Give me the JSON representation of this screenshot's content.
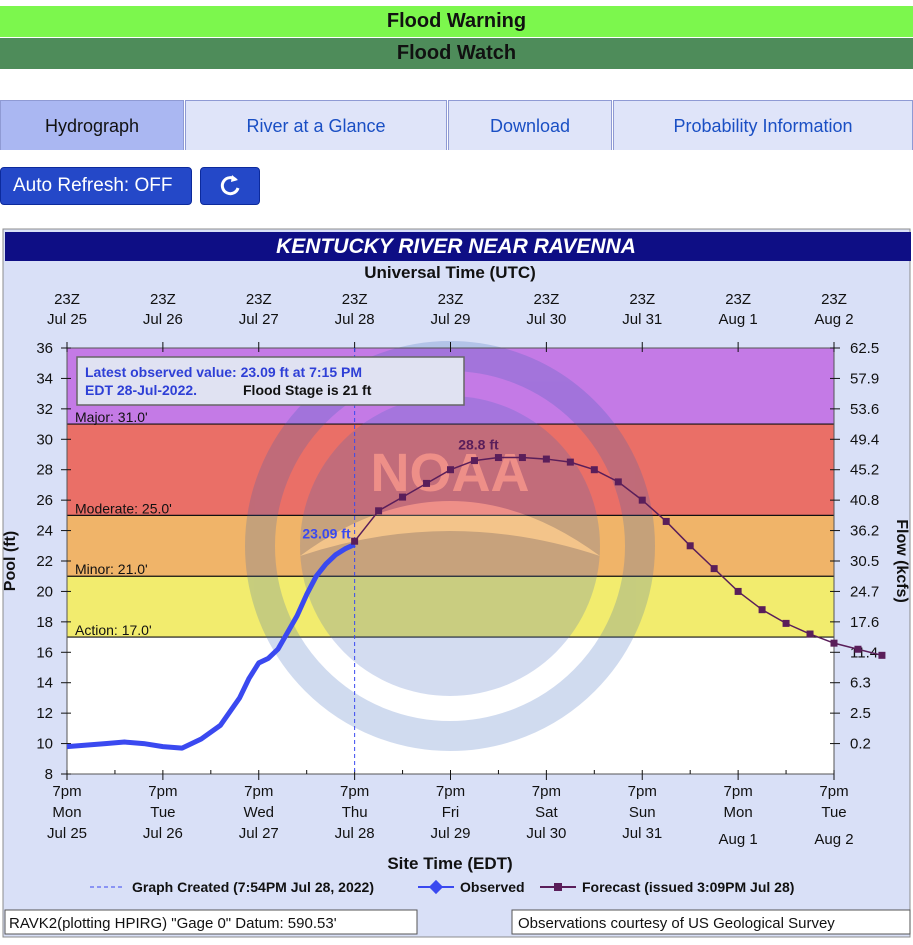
{
  "banners": {
    "warning": "Flood Warning",
    "watch": "Flood Watch"
  },
  "tabs": [
    {
      "label": "Hydrograph",
      "active": true
    },
    {
      "label": "River at a Glance",
      "active": false
    },
    {
      "label": "Download",
      "active": false
    },
    {
      "label": "Probability Information",
      "active": false
    }
  ],
  "controls": {
    "auto_refresh_label": "Auto Refresh: OFF",
    "refresh_icon": "refresh-icon"
  },
  "colors": {
    "warning": "#7cf74d",
    "watch": "#4e8c5a",
    "title_bar": "#0e0e85",
    "major": "#c47ae6",
    "moderate": "#ea6f67",
    "minor": "#f0b469",
    "action": "#f2ec6e",
    "normal": "#ffffff",
    "observed": "#3a49f0",
    "forecast": "#5a1e5a"
  },
  "chart_data": {
    "type": "line",
    "title": "KENTUCKY RIVER NEAR RAVENNA",
    "top_axis_title": "Universal Time (UTC)",
    "top_ticks": [
      [
        "23Z",
        "Jul 25"
      ],
      [
        "23Z",
        "Jul 26"
      ],
      [
        "23Z",
        "Jul 27"
      ],
      [
        "23Z",
        "Jul 28"
      ],
      [
        "23Z",
        "Jul 29"
      ],
      [
        "23Z",
        "Jul 30"
      ],
      [
        "23Z",
        "Jul 31"
      ],
      [
        "23Z",
        "Aug 1"
      ],
      [
        "23Z",
        "Aug 2"
      ]
    ],
    "bottom_axis_title": "Site Time (EDT)",
    "bottom_ticks": [
      [
        "7pm",
        "Mon",
        "Jul 25"
      ],
      [
        "7pm",
        "Tue",
        "Jul 26"
      ],
      [
        "7pm",
        "Wed",
        "Jul 27"
      ],
      [
        "7pm",
        "Thu",
        "Jul 28"
      ],
      [
        "7pm",
        "Fri",
        "Jul 29"
      ],
      [
        "7pm",
        "Sat",
        "Jul 30"
      ],
      [
        "7pm",
        "Sun",
        "Jul 31"
      ],
      [
        "7pm",
        "Mon",
        "Aug 1"
      ],
      [
        "7pm",
        "Tue",
        "Aug 2"
      ]
    ],
    "ylabel_left": "Pool (ft)",
    "ylabel_right": "Flow (kcfs)",
    "ylim": [
      8,
      36
    ],
    "left_ticks": [
      8,
      10,
      12,
      14,
      16,
      18,
      20,
      22,
      24,
      26,
      28,
      30,
      32,
      34,
      36
    ],
    "right_ticks": [
      {
        "stage": 10,
        "label": "0.2"
      },
      {
        "stage": 12,
        "label": "2.5"
      },
      {
        "stage": 14,
        "label": "6.3"
      },
      {
        "stage": 16,
        "label": "11.4"
      },
      {
        "stage": 18,
        "label": "17.6"
      },
      {
        "stage": 20,
        "label": "24.7"
      },
      {
        "stage": 22,
        "label": "30.5"
      },
      {
        "stage": 24,
        "label": "36.2"
      },
      {
        "stage": 26,
        "label": "40.8"
      },
      {
        "stage": 28,
        "label": "45.2"
      },
      {
        "stage": 30,
        "label": "49.4"
      },
      {
        "stage": 32,
        "label": "53.6"
      },
      {
        "stage": 34,
        "label": "57.9"
      },
      {
        "stage": 36,
        "label": "62.5"
      }
    ],
    "x_unit": "days after 7pm EDT Mon Jul 25",
    "flood_categories": [
      {
        "name": "Major",
        "label": "Major: 31.0'",
        "stage": 31.0
      },
      {
        "name": "Moderate",
        "label": "Moderate: 25.0'",
        "stage": 25.0
      },
      {
        "name": "Minor",
        "label": "Minor: 21.0'",
        "stage": 21.0
      },
      {
        "name": "Action",
        "label": "Action: 17.0'",
        "stage": 17.0
      }
    ],
    "latest_box": {
      "line1": "Latest observed value: 23.09 ft at 7:15 PM",
      "line2a": "EDT 28-Jul-2022.",
      "line2b": "Flood Stage is 21 ft"
    },
    "observed_label": "23.09 ft",
    "crest_label": "28.8 ft",
    "created_day": 3.0,
    "watermark": "NOAA",
    "observed": {
      "name": "Observed",
      "x": [
        0,
        0.2,
        0.4,
        0.6,
        0.8,
        1.0,
        1.2,
        1.4,
        1.6,
        1.8,
        1.9,
        2.0,
        2.1,
        2.2,
        2.4,
        2.5,
        2.6,
        2.7,
        2.8,
        2.9,
        3.0
      ],
      "y": [
        9.8,
        9.9,
        10.0,
        10.1,
        10.0,
        9.8,
        9.7,
        10.3,
        11.2,
        13.0,
        14.3,
        15.3,
        15.6,
        16.2,
        18.4,
        19.8,
        21.0,
        21.8,
        22.4,
        22.8,
        23.09
      ]
    },
    "forecast": {
      "name": "Forecast",
      "x": [
        3.0,
        3.25,
        3.5,
        3.75,
        4.0,
        4.25,
        4.5,
        4.75,
        5.0,
        5.25,
        5.5,
        5.75,
        6.0,
        6.25,
        6.5,
        6.75,
        7.0,
        7.25,
        7.5,
        7.75,
        8.0,
        8.25,
        8.5
      ],
      "y": [
        23.3,
        25.3,
        26.2,
        27.1,
        28.0,
        28.6,
        28.8,
        28.8,
        28.7,
        28.5,
        28.0,
        27.2,
        26.0,
        24.6,
        23.0,
        21.5,
        20.0,
        18.8,
        17.9,
        17.2,
        16.6,
        16.2,
        15.8
      ]
    },
    "legend": {
      "created": "Graph Created (7:54PM Jul 28, 2022)",
      "observed": "Observed",
      "forecast": "Forecast (issued 3:09PM Jul 28)"
    },
    "footer_left": "RAVK2(plotting HPIRG) \"Gage 0\" Datum: 590.53'",
    "footer_right": "Observations courtesy of US Geological Survey"
  }
}
